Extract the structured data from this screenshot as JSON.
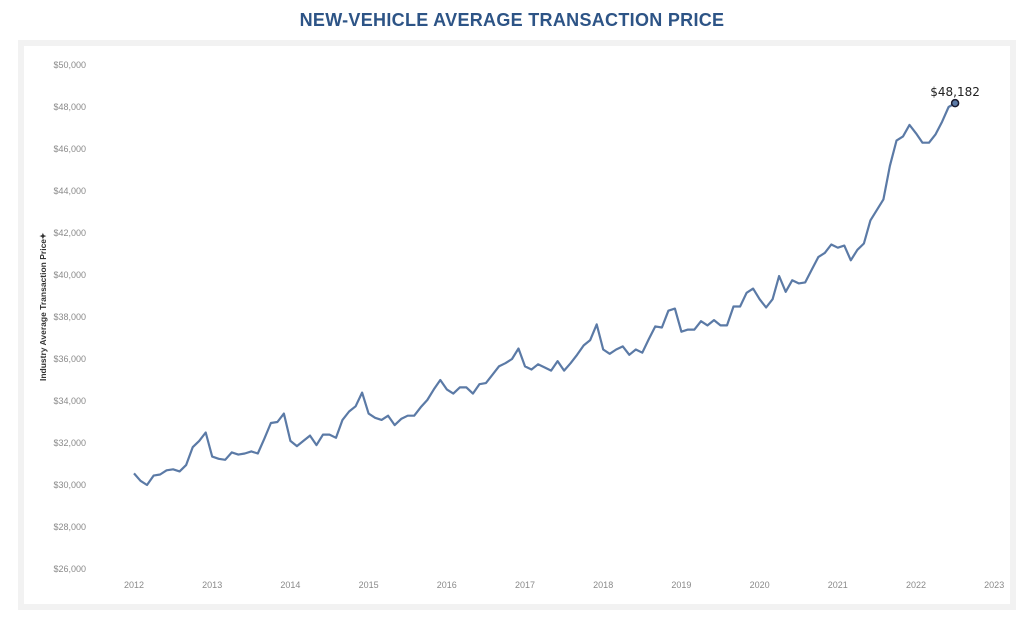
{
  "title": "NEW-VEHICLE AVERAGE TRANSACTION PRICE",
  "chart_data": {
    "type": "line",
    "title": "NEW-VEHICLE AVERAGE TRANSACTION PRICE",
    "xlabel": "",
    "ylabel": "Industry Average Transaction Price",
    "x_ticks": [
      "2012",
      "2013",
      "2014",
      "2015",
      "2016",
      "2017",
      "2018",
      "2019",
      "2020",
      "2021",
      "2022",
      "2023"
    ],
    "y_ticks": [
      "$26,000",
      "$28,000",
      "$30,000",
      "$32,000",
      "$34,000",
      "$36,000",
      "$38,000",
      "$40,000",
      "$42,000",
      "$44,000",
      "$46,000",
      "$48,000",
      "$50,000"
    ],
    "ylim": [
      26000,
      50000
    ],
    "xlim": [
      "2012-01",
      "2023-01"
    ],
    "grid": false,
    "line_color": "#5b7aa6",
    "start": "2012-01",
    "frequency": "monthly",
    "values": [
      30550,
      30200,
      30000,
      30450,
      30500,
      30700,
      30750,
      30650,
      30950,
      31800,
      32100,
      32500,
      31350,
      31250,
      31200,
      31550,
      31450,
      31500,
      31600,
      31500,
      32200,
      32950,
      33000,
      33400,
      32100,
      31850,
      32100,
      32350,
      31900,
      32400,
      32400,
      32250,
      33100,
      33500,
      33750,
      34400,
      33400,
      33200,
      33100,
      33300,
      32850,
      33150,
      33300,
      33300,
      33700,
      34050,
      34550,
      35000,
      34550,
      34350,
      34650,
      34650,
      34350,
      34800,
      34850,
      35250,
      35650,
      35800,
      36000,
      36500,
      35650,
      35500,
      35750,
      35600,
      35450,
      35900,
      35450,
      35800,
      36200,
      36650,
      36900,
      37650,
      36450,
      36250,
      36450,
      36600,
      36200,
      36450,
      36300,
      36950,
      37550,
      37500,
      38300,
      38400,
      37300,
      37400,
      37400,
      37800,
      37600,
      37850,
      37600,
      37600,
      38500,
      38500,
      39150,
      39350,
      38850,
      38450,
      38850,
      39950,
      39200,
      39750,
      39600,
      39650,
      40250,
      40850,
      41050,
      41450,
      41300,
      41400,
      40700,
      41200,
      41500,
      42600,
      43100,
      43600,
      45200,
      46400,
      46600,
      47150,
      46750,
      46300,
      46300,
      46700,
      47300,
      48000,
      48182
    ],
    "annotation": {
      "label": "$48,182",
      "value": 48182,
      "x": "2022-07"
    }
  }
}
